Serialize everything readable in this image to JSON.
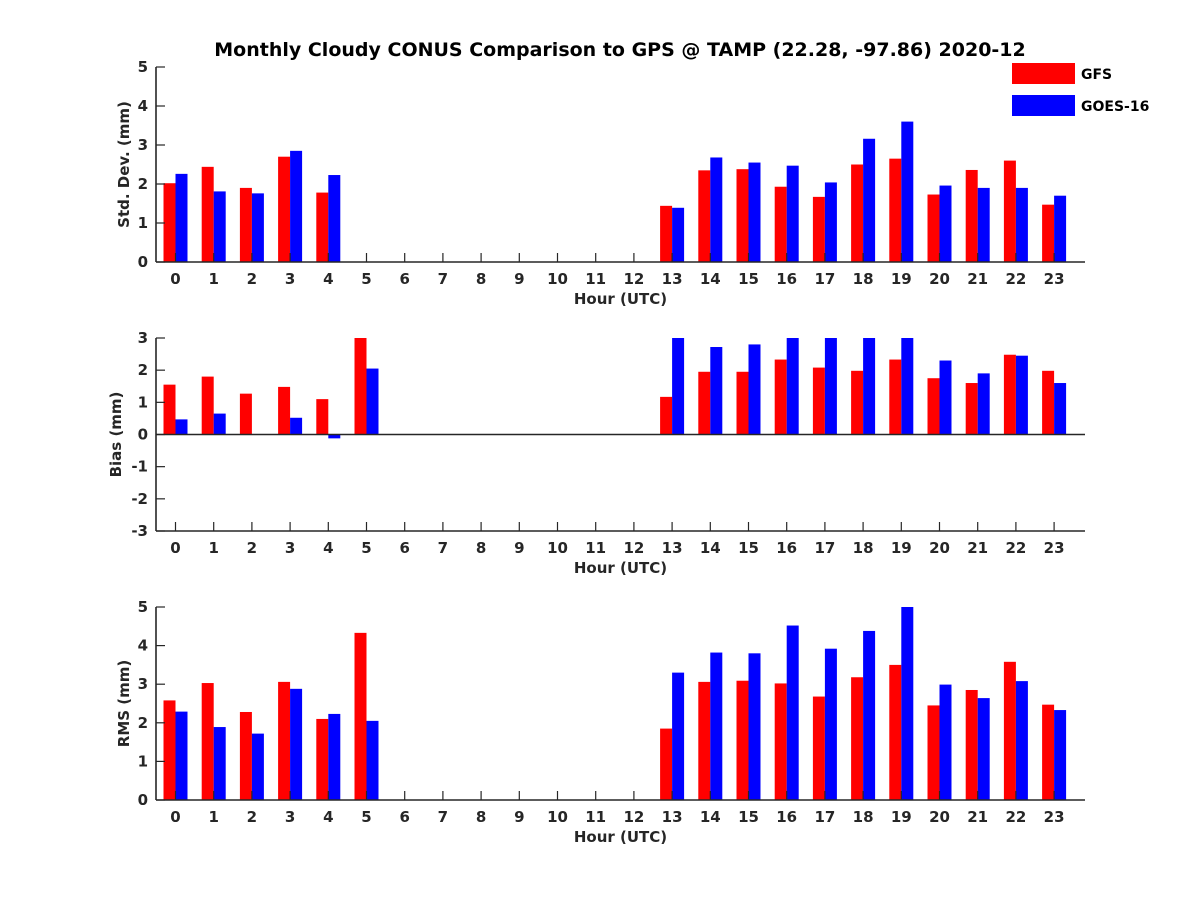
{
  "title": "Monthly Cloudy CONUS Comparison to GPS @ TAMP (22.28, -97.86) 2020-12",
  "legend": [
    {
      "name": "GFS",
      "color": "#ff0000"
    },
    {
      "name": "GOES-16",
      "color": "#0000ff"
    }
  ],
  "chart_data": [
    {
      "type": "bar",
      "title": "Monthly Cloudy CONUS Comparison to GPS @ TAMP (22.28, -97.86) 2020-12",
      "xlabel": "Hour (UTC)",
      "ylabel": "Std. Dev. (mm)",
      "ylim": [
        0,
        5
      ],
      "yticks": [
        0,
        1,
        2,
        3,
        4,
        5
      ],
      "categories": [
        "0",
        "1",
        "2",
        "3",
        "4",
        "5",
        "6",
        "7",
        "8",
        "9",
        "10",
        "11",
        "12",
        "13",
        "14",
        "15",
        "16",
        "17",
        "18",
        "19",
        "20",
        "21",
        "22",
        "23"
      ],
      "series": [
        {
          "name": "GFS",
          "color": "#ff0000",
          "values": [
            2.02,
            2.44,
            1.9,
            2.7,
            1.78,
            null,
            null,
            null,
            null,
            null,
            null,
            null,
            null,
            1.44,
            2.35,
            2.38,
            1.93,
            1.67,
            2.5,
            2.65,
            1.73,
            2.36,
            2.6,
            1.47
          ]
        },
        {
          "name": "GOES-16",
          "color": "#0000ff",
          "values": [
            2.26,
            1.81,
            1.76,
            2.85,
            2.23,
            null,
            null,
            null,
            null,
            null,
            null,
            null,
            null,
            1.39,
            2.68,
            2.55,
            2.47,
            2.04,
            3.16,
            3.6,
            1.96,
            1.9,
            1.9,
            1.7
          ]
        }
      ],
      "legend": "top-right",
      "grid": false
    },
    {
      "type": "bar",
      "xlabel": "Hour (UTC)",
      "ylabel": "Bias (mm)",
      "ylim": [
        -3,
        3
      ],
      "yticks": [
        -3,
        -2,
        -1,
        0,
        1,
        2,
        3
      ],
      "categories": [
        "0",
        "1",
        "2",
        "3",
        "4",
        "5",
        "6",
        "7",
        "8",
        "9",
        "10",
        "11",
        "12",
        "13",
        "14",
        "15",
        "16",
        "17",
        "18",
        "19",
        "20",
        "21",
        "22",
        "23"
      ],
      "series": [
        {
          "name": "GFS",
          "color": "#ff0000",
          "values": [
            1.55,
            1.8,
            1.27,
            1.48,
            1.1,
            3.0,
            null,
            null,
            null,
            null,
            null,
            null,
            null,
            1.17,
            1.95,
            1.95,
            2.33,
            2.08,
            1.98,
            2.33,
            1.75,
            1.6,
            2.48,
            1.98
          ]
        },
        {
          "name": "GOES-16",
          "color": "#0000ff",
          "values": [
            0.47,
            0.65,
            null,
            0.52,
            -0.12,
            2.05,
            null,
            null,
            null,
            null,
            null,
            null,
            null,
            3.0,
            2.72,
            2.8,
            3.0,
            3.0,
            3.0,
            3.0,
            2.3,
            1.9,
            2.45,
            1.6
          ]
        }
      ],
      "grid": false
    },
    {
      "type": "bar",
      "xlabel": "Hour (UTC)",
      "ylabel": "RMS (mm)",
      "ylim": [
        0,
        5
      ],
      "yticks": [
        0,
        1,
        2,
        3,
        4,
        5
      ],
      "categories": [
        "0",
        "1",
        "2",
        "3",
        "4",
        "5",
        "6",
        "7",
        "8",
        "9",
        "10",
        "11",
        "12",
        "13",
        "14",
        "15",
        "16",
        "17",
        "18",
        "19",
        "20",
        "21",
        "22",
        "23"
      ],
      "series": [
        {
          "name": "GFS",
          "color": "#ff0000",
          "values": [
            2.58,
            3.03,
            2.28,
            3.06,
            2.1,
            4.33,
            null,
            null,
            null,
            null,
            null,
            null,
            null,
            1.85,
            3.06,
            3.09,
            3.02,
            2.68,
            3.18,
            3.5,
            2.45,
            2.85,
            3.58,
            2.47
          ]
        },
        {
          "name": "GOES-16",
          "color": "#0000ff",
          "values": [
            2.29,
            1.89,
            1.72,
            2.88,
            2.23,
            2.05,
            null,
            null,
            null,
            null,
            null,
            null,
            null,
            3.3,
            3.82,
            3.8,
            4.52,
            3.92,
            4.38,
            5.0,
            2.99,
            2.64,
            3.08,
            2.33
          ]
        }
      ],
      "grid": false
    }
  ]
}
